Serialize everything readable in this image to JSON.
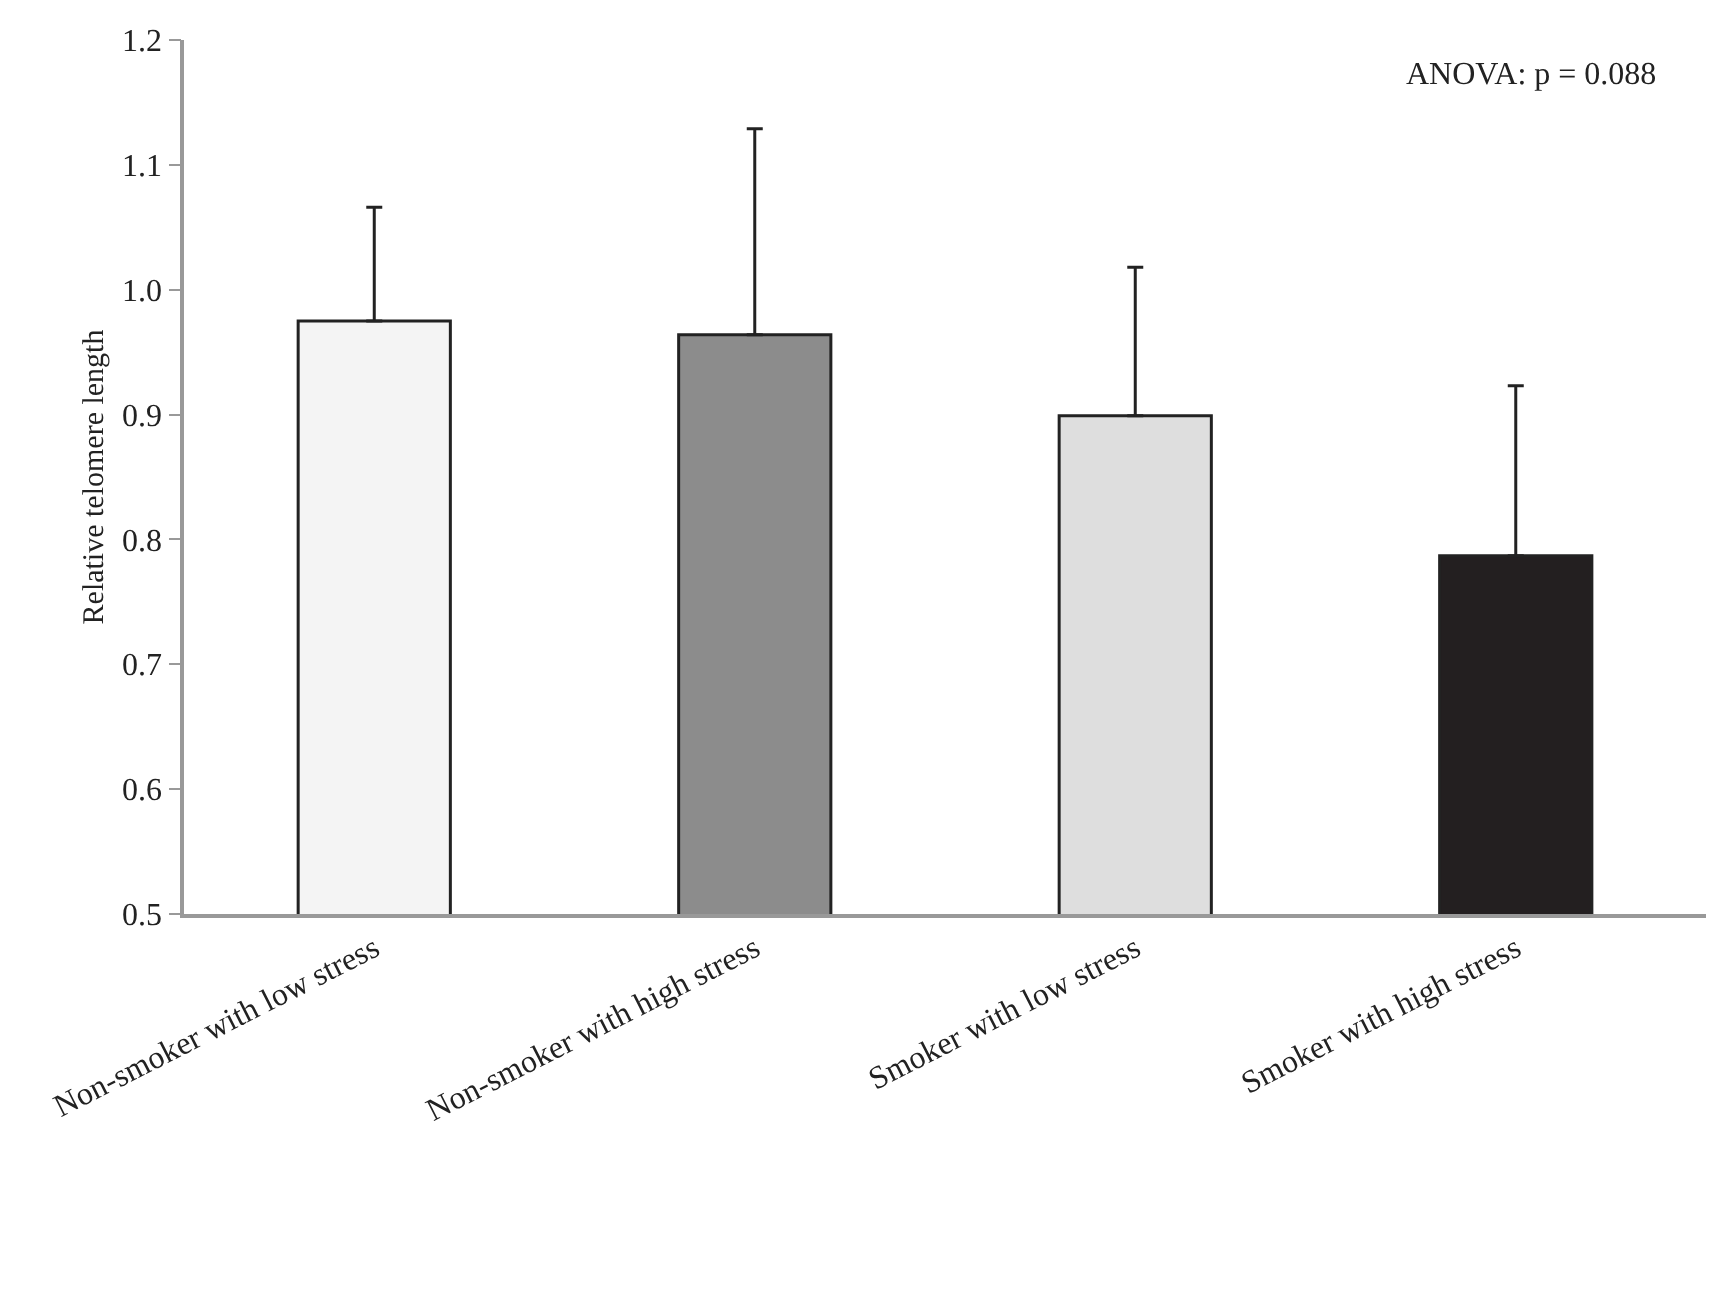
{
  "chart_data": {
    "type": "bar",
    "categories": [
      "Non-smoker with low stress",
      "Non-smoker with high stress",
      "Smoker with low stress",
      "Smoker with high stress"
    ],
    "values": [
      0.975,
      0.964,
      0.899,
      0.787
    ],
    "colors": [
      "#f4f4f4",
      "#8c8c8c",
      "#dedede",
      "#231f20"
    ],
    "errors": [
      [
        0.975,
        1.066
      ],
      [
        0.964,
        1.129
      ],
      [
        0.899,
        1.018
      ],
      [
        0.787,
        0.923
      ]
    ],
    "ylabel": "Relative telomere length",
    "ylim": [
      0.5,
      1.2
    ],
    "yticks": [
      0.5,
      0.6,
      0.7,
      0.8,
      0.9,
      {
        "value": 1,
        "label": "1.0"
      },
      1.1,
      1.2
    ],
    "annotations": [
      "ANOVA: p = 0.088"
    ],
    "grid": false,
    "legend": false
  }
}
